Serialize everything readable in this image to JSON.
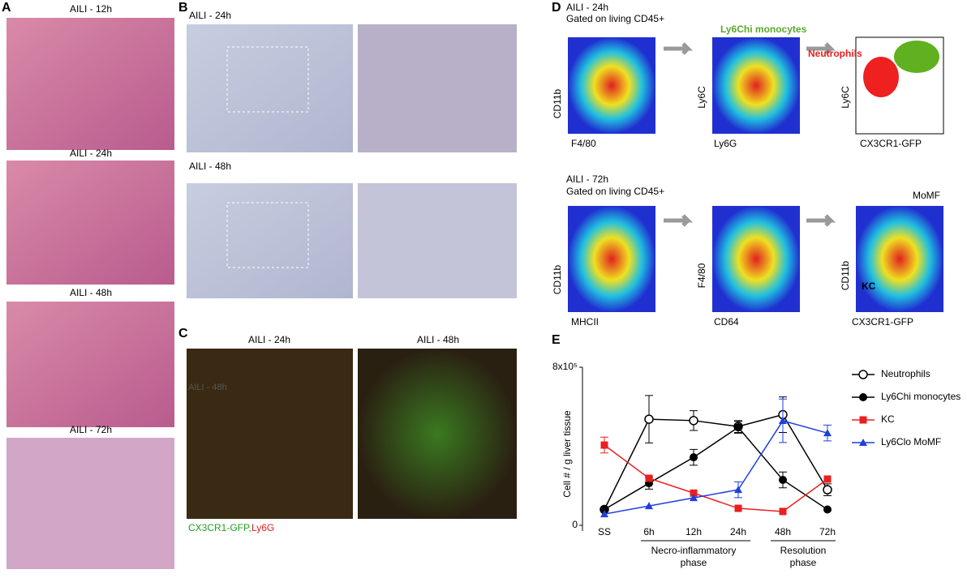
{
  "panels": {
    "A": {
      "letter": "A",
      "titles": [
        "AILI - 12h",
        "AILI - 24h",
        "AILI - 48h",
        "AILI - 72h"
      ]
    },
    "B": {
      "letter": "B",
      "titles": [
        "AILI - 24h",
        "AILI - 48h"
      ]
    },
    "C": {
      "letter": "C",
      "titles": [
        "AILI - 24h",
        "AILI - 48h"
      ],
      "caption_green": "CX3CR1-GFP,",
      "caption_red": "Ly6G",
      "overlay": "AILI - 48h"
    },
    "D": {
      "letter": "D",
      "top": {
        "title": "AILI - 24h",
        "gate": "Gated on living CD45+",
        "axes": [
          "CD11b",
          "F4/80",
          "Ly6C",
          "Ly6G",
          "Ly6C",
          "CX3CR1-GFP"
        ],
        "pop_mono": "Ly6Chi monocytes",
        "pop_neut": "Neutrophils"
      },
      "bottom": {
        "title": "AILI - 72h",
        "gate": "Gated on living CD45+",
        "axes": [
          "CD11b",
          "MHCII",
          "F4/80",
          "CD64",
          "CD11b",
          "CX3CR1-GFP"
        ],
        "pop_momf": "MoMF",
        "pop_kc": "KC"
      }
    },
    "E": {
      "letter": "E"
    }
  },
  "chart_data": {
    "type": "line",
    "y_label": "Cell # / g liver tissue",
    "categories": [
      "SS",
      "6h",
      "12h",
      "24h",
      "48h",
      "72h"
    ],
    "annotations": [
      "Necro-inflammatory phase",
      "Resolution phase"
    ],
    "ylim": [
      0,
      800000
    ],
    "yticks": [
      0,
      {
        "value": 800000,
        "label": "8x10⁵"
      }
    ],
    "series": [
      {
        "name": "Neutrophils",
        "color": "#000000",
        "marker": "open-circle",
        "values": [
          80000,
          537000,
          530000,
          500000,
          560000,
          180000
        ],
        "errors": [
          0,
          120000,
          50000,
          30000,
          90000,
          30000
        ]
      },
      {
        "name": "Ly6Chi monocytes",
        "color": "#000000",
        "marker": "circle",
        "values": [
          80000,
          213000,
          344000,
          496000,
          230000,
          80000
        ],
        "errors": [
          0,
          30000,
          40000,
          30000,
          40000,
          0
        ]
      },
      {
        "name": "KC",
        "color": "#e8201f",
        "marker": "square",
        "values": [
          406000,
          238000,
          163000,
          86000,
          70000,
          234000
        ],
        "errors": [
          40000,
          0,
          0,
          0,
          0,
          0
        ]
      },
      {
        "name": "Ly6Clo MoMF",
        "color": "#1f3fdd",
        "marker": "triangle",
        "values": [
          57000,
          98000,
          139000,
          180000,
          529000,
          467000
        ],
        "errors": [
          0,
          0,
          0,
          40000,
          110000,
          40000
        ]
      }
    ]
  }
}
